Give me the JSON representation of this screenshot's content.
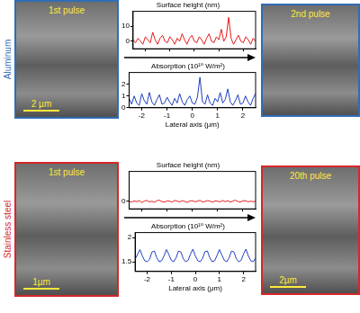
{
  "rows": [
    {
      "material": "Aluminum",
      "color": "#2f6db5",
      "before": {
        "label": "1st pulse",
        "scale_bar": "2 µm"
      },
      "after": {
        "label": "2nd pulse"
      }
    },
    {
      "material": "Stainless steel",
      "color": "#d62728",
      "before": {
        "label": "1st pulse",
        "scale_bar": "1µm"
      },
      "after": {
        "label": "20th pulse",
        "scale_bar": "2µm"
      }
    }
  ],
  "chart_data": [
    {
      "type": "line",
      "title": "Surface height (nm)",
      "color": "#e41a1c",
      "tick_labels": "y",
      "xlim": [
        -2.5,
        2.5
      ],
      "xticks": [
        -2,
        -1,
        0,
        1,
        2
      ],
      "ylim": [
        -5,
        20
      ],
      "yticks": [
        0,
        10
      ],
      "grid": false,
      "x": [
        -2.5,
        -2.4,
        -2.3,
        -2.2,
        -2.1,
        -2.0,
        -1.9,
        -1.8,
        -1.7,
        -1.6,
        -1.5,
        -1.4,
        -1.3,
        -1.2,
        -1.1,
        -1.0,
        -0.9,
        -0.8,
        -0.7,
        -0.6,
        -0.5,
        -0.4,
        -0.3,
        -0.2,
        -0.1,
        0.0,
        0.1,
        0.2,
        0.3,
        0.4,
        0.5,
        0.6,
        0.7,
        0.8,
        0.9,
        1.0,
        1.1,
        1.2,
        1.3,
        1.4,
        1.5,
        1.6,
        1.7,
        1.8,
        1.9,
        2.0,
        2.1,
        2.2,
        2.3,
        2.4,
        2.5
      ],
      "values": [
        1,
        -1,
        2,
        0,
        -2,
        3,
        1,
        -1,
        6,
        1,
        -2,
        2,
        4,
        0,
        -1,
        3,
        1,
        -2,
        2,
        0,
        5,
        1,
        -2,
        2,
        4,
        0,
        -1,
        3,
        1,
        -2,
        2,
        5,
        0,
        -1,
        3,
        1,
        8,
        0,
        3,
        16,
        2,
        -2,
        1,
        4,
        0,
        -1,
        3,
        1,
        -2,
        2,
        0
      ]
    },
    {
      "type": "line",
      "title": "Absorption (10¹⁰ W/m²)",
      "xlabel": "Lateral axis (μm)",
      "color": "#1f3fbf",
      "xlim": [
        -2.5,
        2.5
      ],
      "xticks": [
        -2,
        -1,
        0,
        1,
        2
      ],
      "ylim": [
        0,
        3
      ],
      "yticks": [
        0,
        1,
        2
      ],
      "grid": false,
      "x": [
        -2.5,
        -2.4,
        -2.3,
        -2.2,
        -2.1,
        -2.0,
        -1.9,
        -1.8,
        -1.7,
        -1.6,
        -1.5,
        -1.4,
        -1.3,
        -1.2,
        -1.1,
        -1.0,
        -0.9,
        -0.8,
        -0.7,
        -0.6,
        -0.5,
        -0.4,
        -0.3,
        -0.2,
        -0.1,
        0.0,
        0.1,
        0.2,
        0.3,
        0.4,
        0.5,
        0.6,
        0.7,
        0.8,
        0.9,
        1.0,
        1.1,
        1.2,
        1.3,
        1.4,
        1.5,
        1.6,
        1.7,
        1.8,
        1.9,
        2.0,
        2.1,
        2.2,
        2.3,
        2.4,
        2.5
      ],
      "values": [
        0.8,
        0.3,
        1.0,
        0.4,
        0.2,
        1.2,
        0.6,
        0.3,
        1.3,
        0.5,
        0.2,
        0.7,
        1.1,
        0.3,
        0.4,
        0.9,
        0.5,
        0.2,
        0.8,
        0.4,
        1.2,
        0.5,
        0.2,
        0.7,
        1.0,
        0.4,
        0.3,
        0.9,
        2.6,
        0.5,
        0.3,
        1.1,
        0.4,
        0.2,
        0.8,
        0.5,
        1.3,
        0.4,
        0.7,
        1.6,
        0.5,
        0.2,
        0.6,
        1.1,
        0.3,
        0.4,
        1.0,
        0.5,
        0.2,
        0.8,
        1.2
      ]
    },
    {
      "type": "line",
      "title": "Surface height (nm)",
      "color": "#e41a1c",
      "tick_labels": "y",
      "xlim": [
        -2.5,
        2.5
      ],
      "xticks": [
        -2,
        -1,
        0,
        1,
        2
      ],
      "ylim": [
        -5,
        20
      ],
      "yticks": [
        0
      ],
      "grid": false,
      "x": [
        -2.5,
        -2.4,
        -2.3,
        -2.2,
        -2.1,
        -2.0,
        -1.9,
        -1.8,
        -1.7,
        -1.6,
        -1.5,
        -1.4,
        -1.3,
        -1.2,
        -1.1,
        -1.0,
        -0.9,
        -0.8,
        -0.7,
        -0.6,
        -0.5,
        -0.4,
        -0.3,
        -0.2,
        -0.1,
        0.0,
        0.1,
        0.2,
        0.3,
        0.4,
        0.5,
        0.6,
        0.7,
        0.8,
        0.9,
        1.0,
        1.1,
        1.2,
        1.3,
        1.4,
        1.5,
        1.6,
        1.7,
        1.8,
        1.9,
        2.0,
        2.1,
        2.2,
        2.3,
        2.4,
        2.5
      ],
      "values": [
        0,
        -0.5,
        0.3,
        -0.2,
        0.5,
        -0.8,
        0.2,
        0.6,
        -0.3,
        0.1,
        -0.6,
        0.4,
        0.8,
        -0.2,
        -0.5,
        0.3,
        0.1,
        -0.4,
        0.6,
        0.2,
        -0.3,
        0.5,
        -0.1,
        -0.7,
        0.3,
        0.4,
        -0.2,
        0.1,
        0.7,
        -0.4,
        -0.1,
        0.5,
        0.2,
        -0.6,
        0.3,
        0.1,
        -0.3,
        0.6,
        -0.2,
        0.4,
        -0.5,
        0.2,
        0.8,
        -0.1,
        -0.4,
        0.3,
        0.5,
        -0.3,
        0.1,
        -0.2,
        0
      ]
    },
    {
      "type": "line",
      "title": "Absorption (10¹⁰ W/m²)",
      "xlabel": "Lateral axis (μm)",
      "color": "#1f3fbf",
      "xlim": [
        -2.5,
        2.5
      ],
      "xticks": [
        -2,
        -1,
        0,
        1,
        2
      ],
      "ylim": [
        1.3,
        2.1
      ],
      "yticks": [
        1.5,
        2
      ],
      "grid": false,
      "x": [
        -2.5,
        -2.4,
        -2.3,
        -2.2,
        -2.1,
        -2.0,
        -1.9,
        -1.8,
        -1.7,
        -1.6,
        -1.5,
        -1.4,
        -1.3,
        -1.2,
        -1.1,
        -1.0,
        -0.9,
        -0.8,
        -0.7,
        -0.6,
        -0.5,
        -0.4,
        -0.3,
        -0.2,
        -0.1,
        0.0,
        0.1,
        0.2,
        0.3,
        0.4,
        0.5,
        0.6,
        0.7,
        0.8,
        0.9,
        1.0,
        1.1,
        1.2,
        1.3,
        1.4,
        1.5,
        1.6,
        1.7,
        1.8,
        1.9,
        2.0,
        2.1,
        2.2,
        2.3,
        2.4,
        2.5
      ],
      "values": [
        1.55,
        1.65,
        1.75,
        1.62,
        1.52,
        1.5,
        1.55,
        1.7,
        1.72,
        1.58,
        1.5,
        1.52,
        1.62,
        1.75,
        1.65,
        1.53,
        1.5,
        1.58,
        1.72,
        1.7,
        1.56,
        1.5,
        1.53,
        1.66,
        1.76,
        1.62,
        1.52,
        1.5,
        1.57,
        1.71,
        1.72,
        1.58,
        1.5,
        1.52,
        1.63,
        1.75,
        1.64,
        1.53,
        1.5,
        1.58,
        1.72,
        1.7,
        1.56,
        1.5,
        1.53,
        1.66,
        1.76,
        1.62,
        1.52,
        1.5,
        1.57
      ]
    }
  ]
}
